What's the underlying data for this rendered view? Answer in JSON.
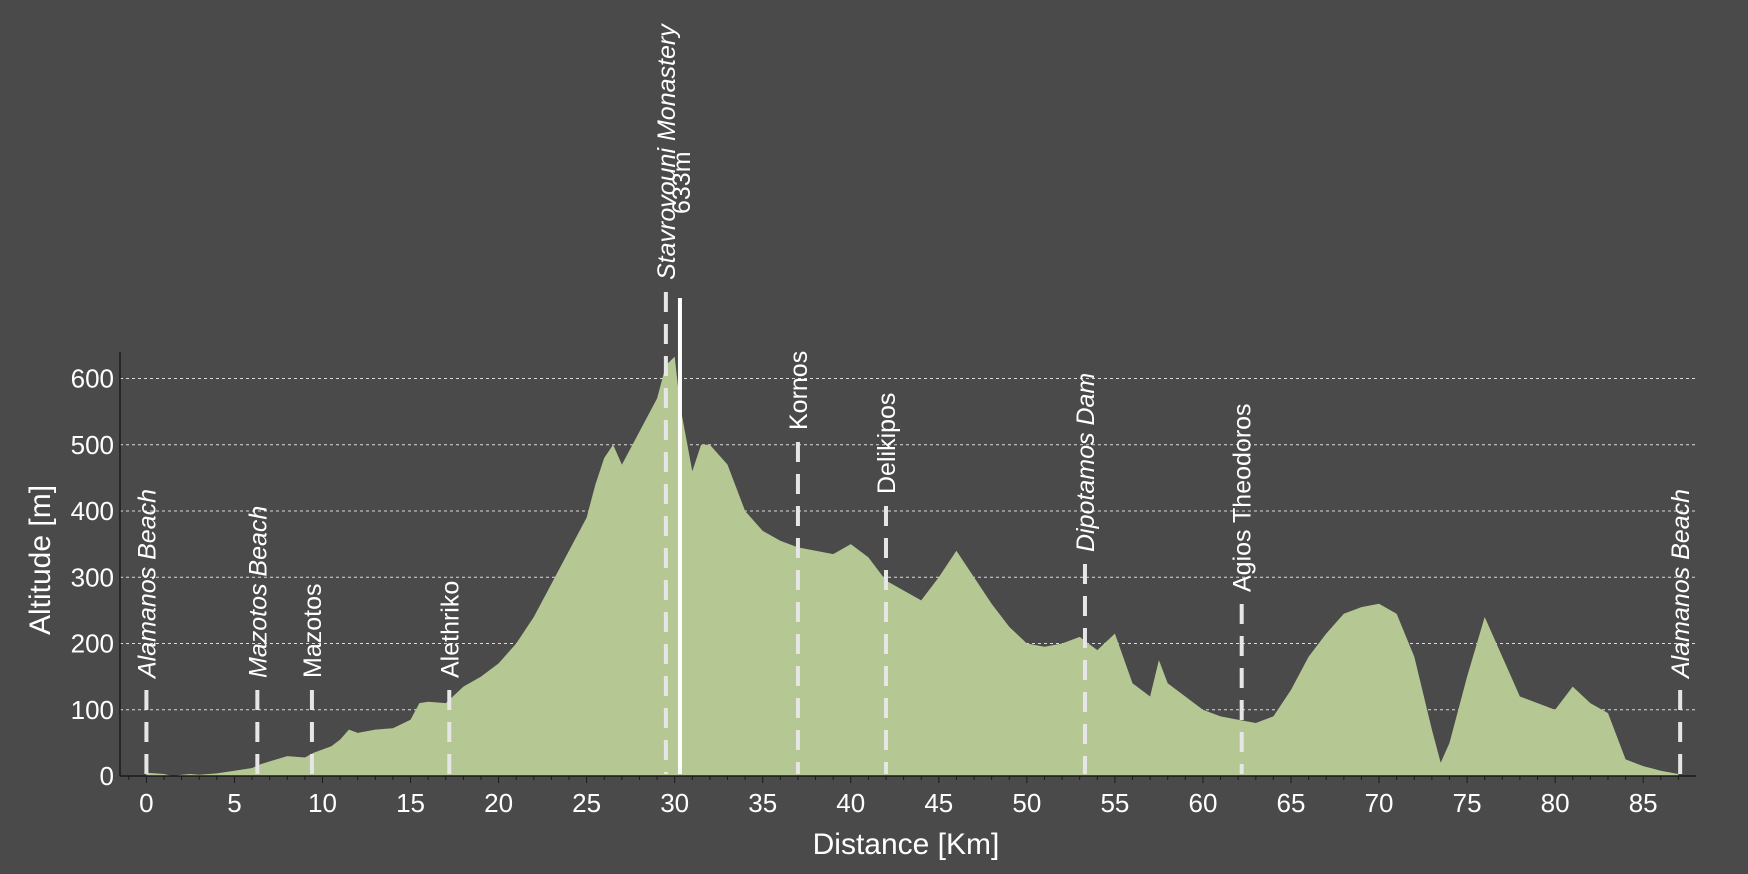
{
  "chart_data": {
    "type": "area",
    "xlabel": "Distance [Km]",
    "ylabel": "Altitude [m]",
    "xlim": [
      -1.5,
      88
    ],
    "ylim": [
      0,
      640
    ],
    "x_ticks": [
      0,
      5,
      10,
      15,
      20,
      25,
      30,
      35,
      40,
      45,
      50,
      55,
      60,
      65,
      70,
      75,
      80,
      85
    ],
    "y_ticks": [
      0,
      100,
      200,
      300,
      400,
      500,
      600
    ],
    "grid": "horizontal dashed",
    "fill_color": "#b5c792",
    "background_color": "#4a4a4a",
    "profile": {
      "x": [
        0,
        1,
        1.5,
        2,
        2.5,
        3,
        4,
        5,
        6,
        6.5,
        7,
        8,
        9,
        9.5,
        10,
        10.5,
        11,
        11.5,
        12,
        13,
        14,
        15,
        15.5,
        16,
        17,
        18,
        19,
        20,
        21,
        22,
        23,
        24,
        25,
        25.5,
        26,
        26.5,
        27,
        28,
        29,
        29.5,
        30,
        30.3,
        31,
        31.5,
        32,
        33,
        34,
        35,
        36,
        37,
        38,
        39,
        40,
        41,
        42,
        43,
        44,
        45,
        46,
        47,
        48,
        49,
        50,
        51,
        52,
        53,
        54,
        55,
        56,
        57,
        57.5,
        58,
        59,
        60,
        61,
        62,
        63,
        64,
        65,
        66,
        67,
        68,
        69,
        70,
        71,
        72,
        73,
        73.5,
        74,
        75,
        76,
        77,
        78,
        79,
        80,
        81,
        82,
        83,
        84,
        85,
        86,
        87
      ],
      "y": [
        5,
        3,
        0,
        2,
        3,
        2,
        4,
        8,
        12,
        18,
        22,
        30,
        28,
        35,
        40,
        45,
        55,
        70,
        65,
        70,
        72,
        85,
        110,
        112,
        110,
        135,
        150,
        170,
        200,
        240,
        290,
        340,
        390,
        440,
        480,
        500,
        470,
        520,
        570,
        620,
        633,
        560,
        460,
        500,
        500,
        470,
        400,
        370,
        355,
        345,
        340,
        335,
        350,
        330,
        295,
        280,
        265,
        300,
        340,
        300,
        260,
        225,
        200,
        195,
        200,
        210,
        190,
        215,
        140,
        120,
        175,
        140,
        120,
        100,
        90,
        85,
        80,
        90,
        130,
        180,
        215,
        245,
        255,
        260,
        245,
        180,
        70,
        20,
        50,
        150,
        240,
        180,
        120,
        110,
        100,
        135,
        110,
        95,
        25,
        15,
        8,
        3
      ]
    },
    "waypoints": [
      {
        "name": "Alamanos Beach",
        "x": 0,
        "italic": true
      },
      {
        "name": "Mazotos Beach",
        "x": 6.3,
        "italic": true
      },
      {
        "name": "Mazotos",
        "x": 9.4,
        "italic": false
      },
      {
        "name": "Alethriko",
        "x": 17.2,
        "italic": false
      },
      {
        "name": "Stavrovouni Monastery",
        "x": 29.5,
        "italic": true
      },
      {
        "name": "Kornos",
        "x": 37,
        "italic": false
      },
      {
        "name": "Delikipos",
        "x": 42,
        "italic": false
      },
      {
        "name": "Dipotamos Dam",
        "x": 53.3,
        "italic": true
      },
      {
        "name": "Agios Theodoros",
        "x": 62.2,
        "italic": false
      },
      {
        "name": "Alamanos Beach",
        "x": 87.1,
        "italic": true
      }
    ],
    "peak": {
      "x": 30.3,
      "label": "633m"
    }
  }
}
